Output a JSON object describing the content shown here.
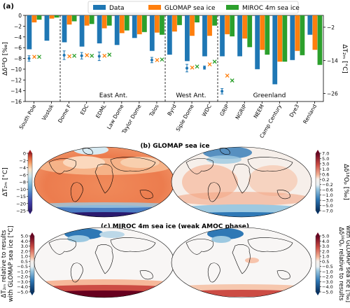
{
  "panel_a": {
    "label": "(a)",
    "legend": [
      {
        "name": "Data",
        "color": "#1f77b4"
      },
      {
        "name": "GLOMAP sea ice",
        "color": "#ff7f0e"
      },
      {
        "name": "MIROC 4m sea ice",
        "color": "#2ca02c"
      }
    ],
    "ylabel_left": "Δδ¹⁸O [‰]",
    "ylabel_right": "ΔT₂ₘ [°C]",
    "left_ticks": [
      "0",
      "−2",
      "−4",
      "−6",
      "−8",
      "−10",
      "−12",
      "−14",
      "−16"
    ],
    "right_ticks": [
      "−2",
      "−14",
      "−26"
    ],
    "regions": [
      "East Ant.",
      "West Ant.",
      "Greenland"
    ]
  },
  "chart_data": {
    "type": "bar",
    "ylim": [
      -16,
      0
    ],
    "categories": [
      "South Pole",
      "Vostok",
      "Dome F",
      "EDC",
      "EDML",
      "Law Dome",
      "Taylor Dome",
      "Talos",
      "Byrd",
      "Siple Dome",
      "WDC",
      "GRIP",
      "NGRIP",
      "NEEM",
      "Camp Century",
      "Dye3",
      "Renland"
    ],
    "series": [
      {
        "name": "Data",
        "values": [
          -6.3,
          -4.7,
          -5.0,
          -5.8,
          -5.2,
          -5.5,
          -4.2,
          -6.6,
          -7.3,
          -8.5,
          -7.6,
          -7.6,
          -7.6,
          -10.0,
          -12.8,
          -8.3,
          -3.6
        ]
      },
      {
        "name": "GLOMAP sea ice",
        "values": [
          -1.3,
          -0.6,
          -1.7,
          -1.9,
          -2.4,
          -3.3,
          -3.5,
          -3.2,
          -3.0,
          -3.8,
          -3.8,
          -3.5,
          -4.3,
          -6.4,
          -8.6,
          -6.6,
          -6.4
        ]
      },
      {
        "name": "MIROC 4m sea ice",
        "values": [
          -0.8,
          -0.4,
          -1.1,
          -1.6,
          -1.9,
          -2.8,
          -3.1,
          -3.6,
          -1.8,
          -1.3,
          -1.9,
          -3.9,
          -5.9,
          -7.3,
          -8.6,
          -7.4,
          -9.2
        ]
      }
    ],
    "markers": [
      {
        "station": "South Pole",
        "data": -8.0,
        "err": 0.5,
        "glomap": -7.7,
        "miroc": -7.7
      },
      {
        "station": "Dome F",
        "data": -7.4,
        "err": 0.8,
        "glomap": -7.6,
        "miroc": -7.5
      },
      {
        "station": "EDC",
        "data": -7.5,
        "err": 0.6,
        "glomap": -7.4,
        "miroc": -7.5
      },
      {
        "station": "EDML",
        "data": -7.6,
        "err": 0.8,
        "glomap": -7.5,
        "miroc": -7.3
      },
      {
        "station": "Talos",
        "data": -8.3,
        "err": 0.5,
        "glomap": -8.3,
        "miroc": -8.2
      },
      {
        "station": "Siple Dome",
        "data": -9.8,
        "err": 0.7,
        "glomap": -9.7,
        "miroc": -9.5
      },
      {
        "station": "WDC",
        "data": -9.7,
        "err": 0.3,
        "glomap": -9.1,
        "miroc": -8.6
      },
      {
        "station": "GRIP",
        "data": -14.1,
        "err": 0.5,
        "glomap": -11.2,
        "miroc": -12.1
      }
    ]
  },
  "panel_b": {
    "title": "(b) GLOMAP sea ice",
    "left_label": "ΔT₂ₘ [°C]",
    "right_label": "Δδ¹⁸Oₚ [‰]",
    "left_ticks": [
      "0",
      "−2",
      "−4",
      "−6",
      "−8",
      "−10",
      "−15",
      "−20",
      "−25"
    ],
    "right_ticks": [
      "7.0",
      "5.0",
      "3.0",
      "1.0",
      "0.6",
      "0.2",
      "−0.2",
      "−0.6",
      "−1.0",
      "−3.0",
      "−5.0",
      "−7.0"
    ]
  },
  "panel_c": {
    "title": "(c) MIROC 4m sea ice (weak AMOC phase)",
    "left_label_1": "ΔT₂ₘ relative to results",
    "left_label_2": "with GLOMAP sea ice [°C]",
    "right_label_1": "Δδ¹⁸Oₚ relative to results",
    "right_label_2": "with GLOMAP sea ice [‰]",
    "ticks": [
      "5.0",
      "4.0",
      "3.0",
      "2.0",
      "1.0",
      "0.5",
      "−0.5",
      "−1.0",
      "−2.0",
      "−3.0",
      "−4.0",
      "−5.0"
    ]
  }
}
